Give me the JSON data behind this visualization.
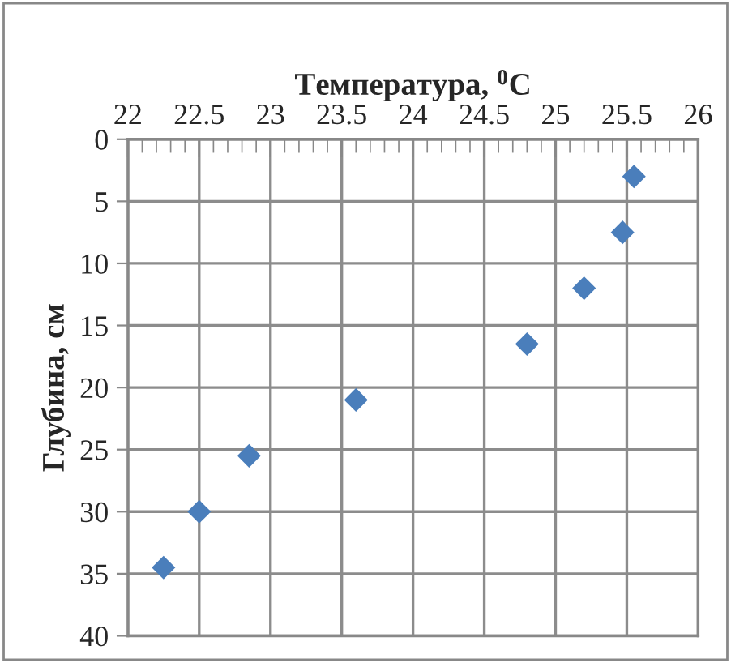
{
  "chart_data": {
    "type": "scatter",
    "xlabel": "Температура, $^{0}$С",
    "ylabel": "Глубина, см",
    "x": [
      25.55,
      25.47,
      25.2,
      24.8,
      23.6,
      22.85,
      22.5,
      22.25
    ],
    "series": [
      {
        "color": "#4a7ebb",
        "values": [
          3,
          7.5,
          12,
          16.5,
          21,
          25.5,
          30,
          34.5
        ]
      }
    ],
    "xlim": [
      22,
      26
    ],
    "xticks": [
      22,
      22.5,
      23,
      23.5,
      24,
      24.5,
      25,
      25.5,
      26
    ],
    "ylim": [
      40,
      0
    ],
    "yticks": [
      0,
      5,
      10,
      15,
      20,
      25,
      30,
      35,
      40
    ],
    "grid": true,
    "marker": "diamond",
    "legend": false
  }
}
